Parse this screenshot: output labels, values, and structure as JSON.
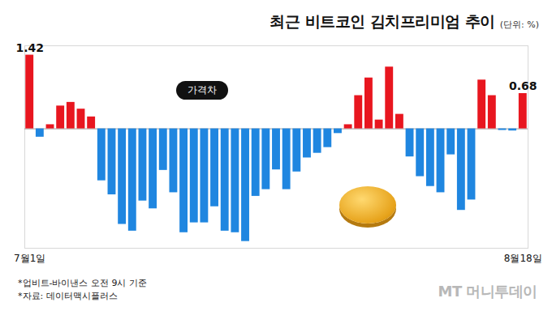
{
  "chart_data": {
    "type": "bar",
    "title": "최근 비트코인 김치프리미엄 추이",
    "subtitle": "(단위: %)",
    "annotation": "가격차",
    "notes": [
      "*업비트-바이낸스 오전 9시 기준",
      "*자료: 데이터맥시플러스"
    ],
    "brand": "MT 머니투데이",
    "categories": [
      "7월1일",
      null,
      null,
      null,
      null,
      null,
      null,
      null,
      null,
      null,
      null,
      null,
      null,
      null,
      null,
      null,
      null,
      null,
      null,
      null,
      null,
      null,
      null,
      null,
      null,
      null,
      null,
      null,
      null,
      null,
      null,
      null,
      null,
      null,
      null,
      null,
      null,
      null,
      null,
      null,
      null,
      null,
      null,
      null,
      null,
      null,
      null,
      null,
      "8월18일"
    ],
    "values": [
      1.42,
      -0.16,
      0.08,
      0.44,
      0.51,
      0.38,
      0.23,
      -1.0,
      -1.27,
      -1.84,
      -1.97,
      -1.39,
      -1.54,
      -0.8,
      -1.23,
      -2.0,
      -1.81,
      -1.81,
      -1.5,
      -1.97,
      -2.0,
      -2.17,
      -1.3,
      -1.17,
      -0.79,
      -1.17,
      -0.83,
      -0.56,
      -0.47,
      -0.36,
      -0.09,
      0.08,
      0.64,
      0.98,
      0.17,
      1.19,
      0.28,
      -0.54,
      -0.92,
      -1.11,
      -1.23,
      -0.5,
      -1.57,
      -1.37,
      0.94,
      0.64,
      -0.03,
      -0.04,
      0.68
    ],
    "value_labels": [
      "1.42",
      null,
      null,
      null,
      null,
      null,
      null,
      null,
      null,
      null,
      null,
      null,
      null,
      null,
      null,
      null,
      null,
      null,
      null,
      null,
      null,
      null,
      null,
      null,
      null,
      null,
      null,
      null,
      null,
      null,
      null,
      null,
      null,
      null,
      null,
      null,
      null,
      null,
      null,
      null,
      null,
      null,
      null,
      null,
      null,
      null,
      null,
      null,
      "0.68"
    ],
    "colors": [
      "#e8161f",
      "#1f86e0",
      "#e8161f",
      "#e8161f",
      "#e8161f",
      "#e8161f",
      "#e8161f",
      "#1f86e0",
      "#1f86e0",
      "#1f86e0",
      "#1f86e0",
      "#1f86e0",
      "#1f86e0",
      "#1f86e0",
      "#1f86e0",
      "#1f86e0",
      "#1f86e0",
      "#1f86e0",
      "#1f86e0",
      "#1f86e0",
      "#1f86e0",
      "#1f86e0",
      "#1f86e0",
      "#1f86e0",
      "#1f86e0",
      "#1f86e0",
      "#1f86e0",
      "#1f86e0",
      "#1f86e0",
      "#1f86e0",
      "#1f86e0",
      "#e8161f",
      "#e8161f",
      "#e8161f",
      "#e8161f",
      "#e8161f",
      "#e8161f",
      "#1f86e0",
      "#1f86e0",
      "#1f86e0",
      "#1f86e0",
      "#1f86e0",
      "#1f86e0",
      "#1f86e0",
      "#e8161f",
      "#e8161f",
      "#1f86e0",
      "#1f86e0",
      "#e8161f"
    ],
    "ylim": [
      -2.3,
      1.6
    ],
    "yticks": [
      0
    ],
    "tick_labels": "x",
    "grid": false
  }
}
